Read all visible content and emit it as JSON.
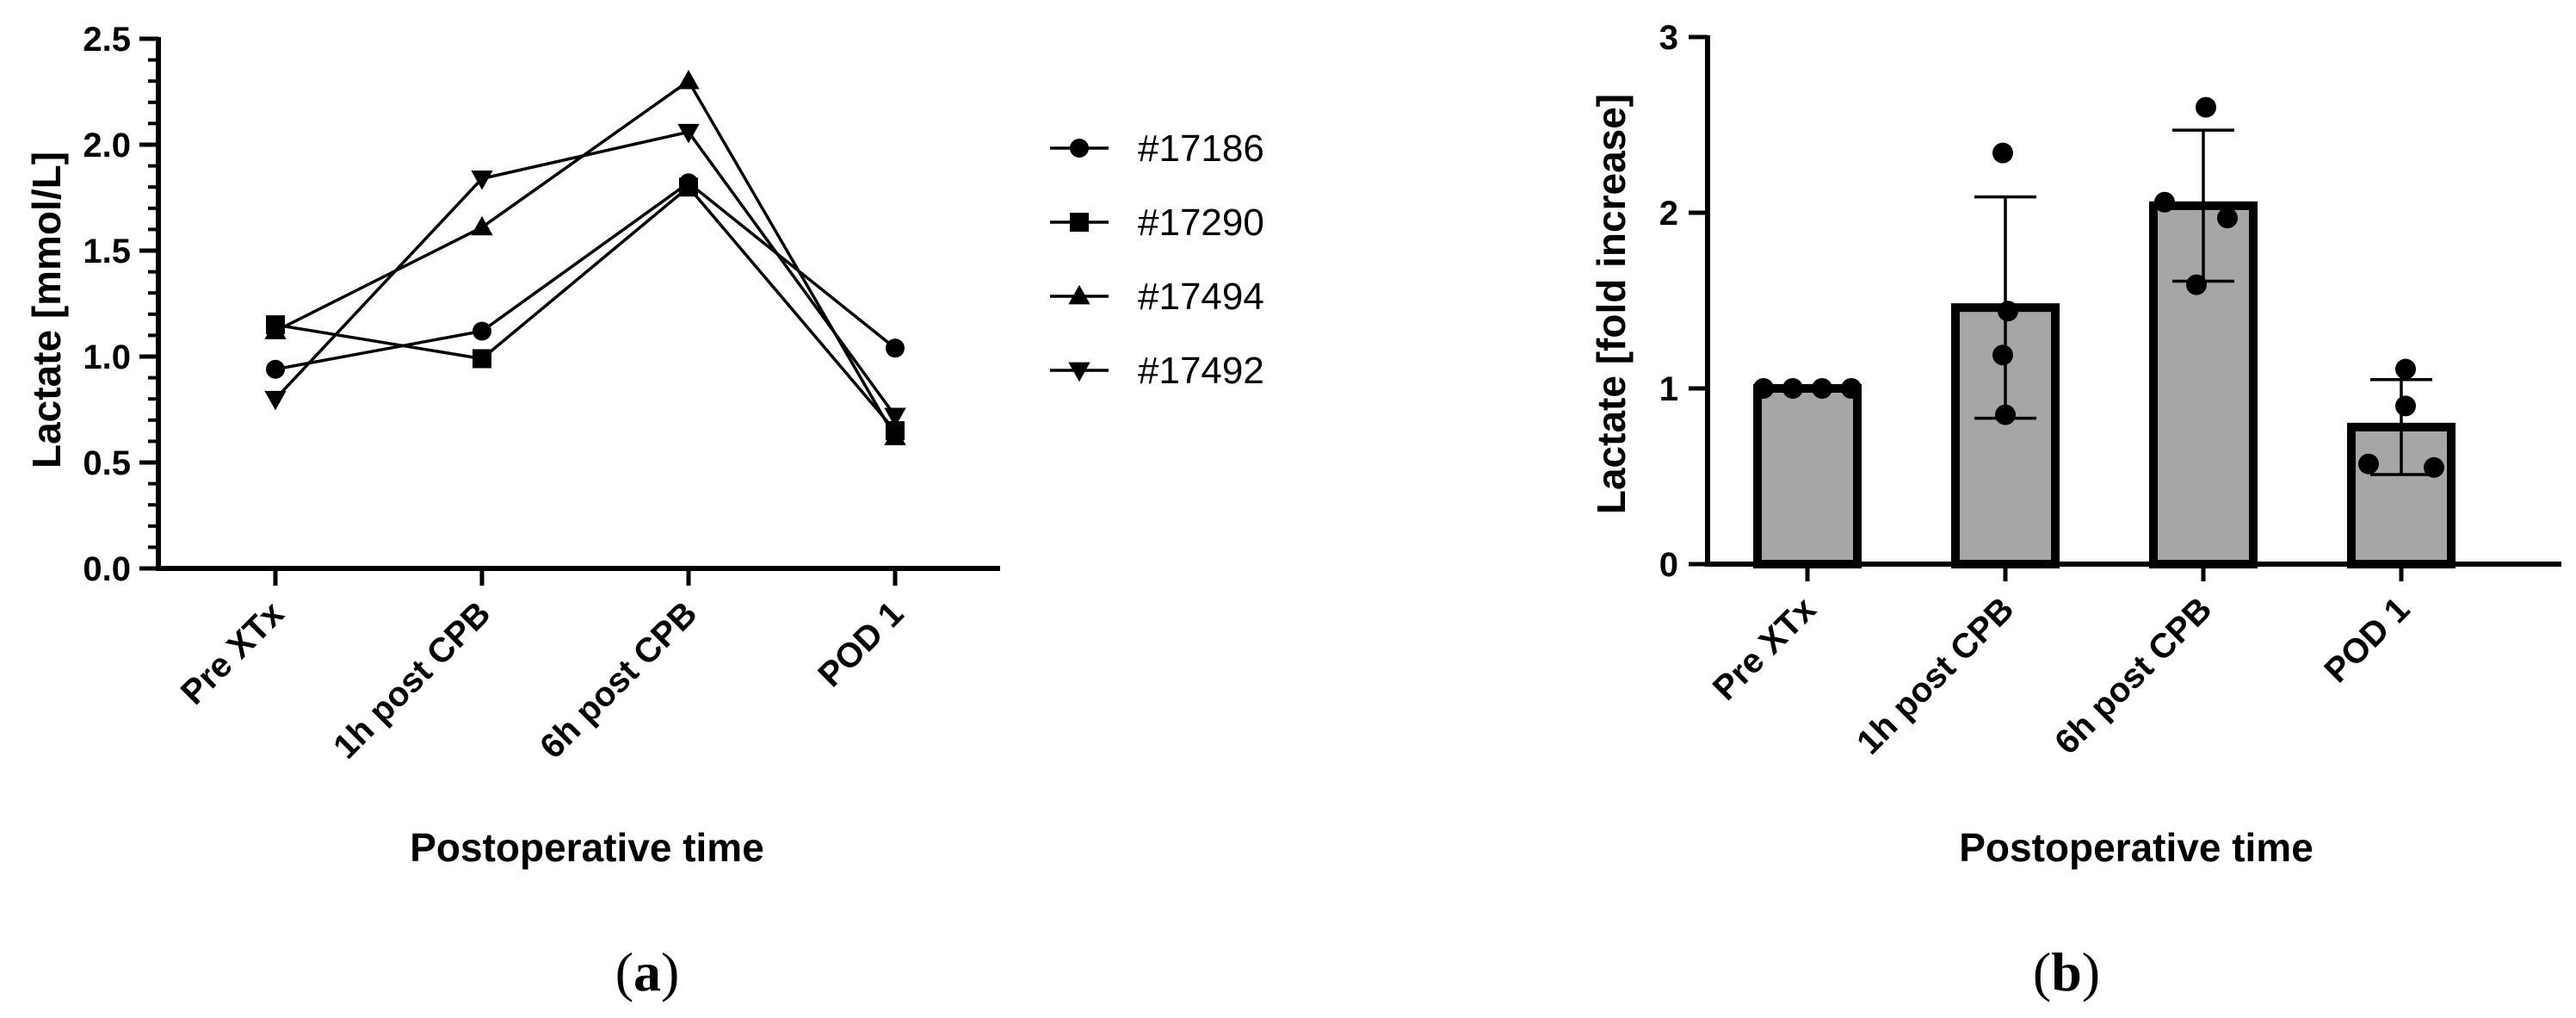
{
  "chart_data": [
    {
      "type": "line",
      "panel_label": {
        "open": "(",
        "letter": "a",
        "close": ")"
      },
      "xlabel": "Postoperative time",
      "ylabel": "Lactate [mmol/L]",
      "categories": [
        "Pre XTx",
        "1h post CPB",
        "6h post CPB",
        "POD 1"
      ],
      "ylim": [
        0,
        2.5
      ],
      "yticks": [
        "0.0",
        "0.5",
        "1.0",
        "1.5",
        "2.0",
        "2.5"
      ],
      "minor_ticks_per_major": 5,
      "legend_position": "right",
      "series": [
        {
          "name": "#17186",
          "marker": "circle",
          "values": [
            0.94,
            1.12,
            1.82,
            1.04
          ]
        },
        {
          "name": "#17290",
          "marker": "square",
          "values": [
            1.15,
            0.99,
            1.8,
            0.65
          ]
        },
        {
          "name": "#17494",
          "marker": "triangle-up",
          "values": [
            1.12,
            1.61,
            2.3,
            0.62
          ]
        },
        {
          "name": "#17492",
          "marker": "triangle-down",
          "values": [
            0.8,
            1.84,
            2.06,
            0.72
          ]
        }
      ],
      "colors": {
        "line": "#000000",
        "marker": "#000000"
      }
    },
    {
      "type": "bar",
      "panel_label": {
        "open": "(",
        "letter": "b",
        "close": ")"
      },
      "xlabel": "Postoperative time",
      "ylabel": "Lactate [fold increase]",
      "categories": [
        "Pre XTx",
        "1h post CPB",
        "6h post CPB",
        "POD 1"
      ],
      "ylim": [
        0,
        3
      ],
      "yticks": [
        "0",
        "1",
        "2",
        "3"
      ],
      "minor_ticks_per_major": 0,
      "values": [
        1.0,
        1.46,
        2.04,
        0.78
      ],
      "error_sd": [
        0.0,
        0.63,
        0.43,
        0.27
      ],
      "points": [
        [
          1.0,
          1.0,
          1.0,
          1.0
        ],
        [
          2.34,
          1.44,
          1.19,
          0.85
        ],
        [
          2.6,
          2.06,
          1.97,
          1.59
        ],
        [
          1.11,
          0.9,
          0.57,
          0.55
        ]
      ],
      "colors": {
        "bar_fill": "#a6a6a6",
        "bar_edge": "#000000",
        "point": "#000000"
      }
    }
  ]
}
